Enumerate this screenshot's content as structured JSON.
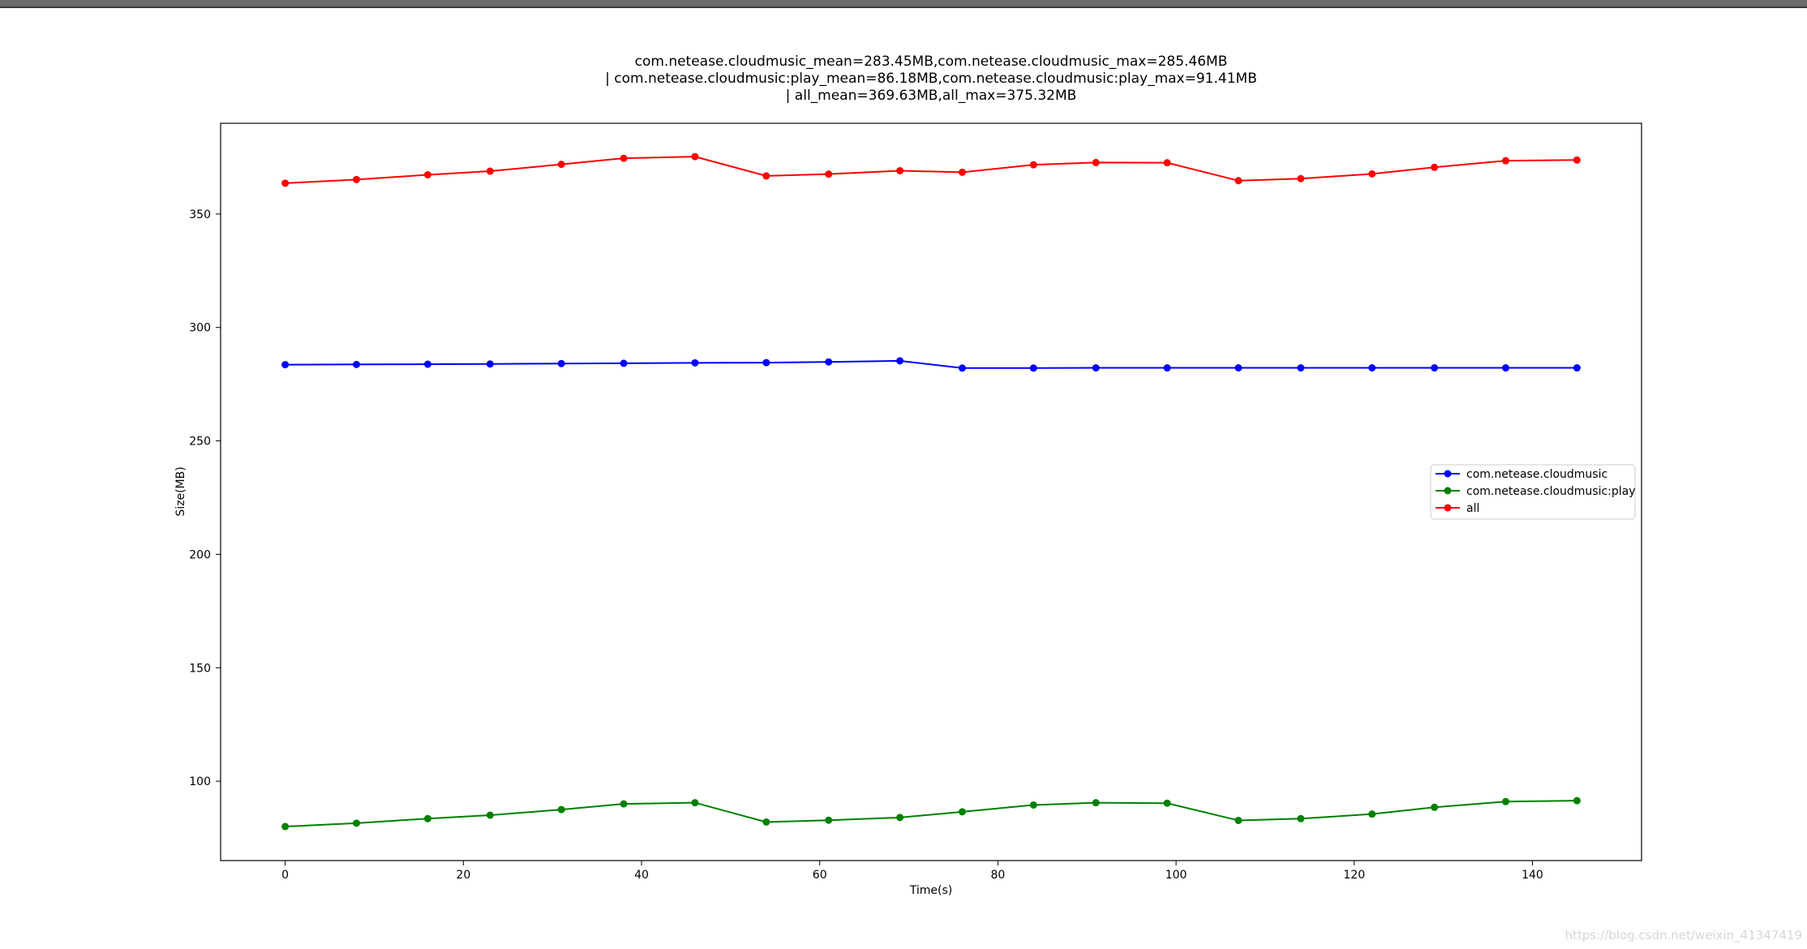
{
  "chart_data": {
    "type": "line",
    "title_lines": [
      "com.netease.cloudmusic_mean=283.45MB,com.netease.cloudmusic_max=285.46MB",
      "| com.netease.cloudmusic:play_mean=86.18MB,com.netease.cloudmusic:play_max=91.41MB",
      "| all_mean=369.63MB,all_max=375.32MB"
    ],
    "xlabel": "Time(s)",
    "ylabel": "Size(MB)",
    "xlim": [
      -7.25,
      152.25
    ],
    "ylim": [
      65,
      390
    ],
    "xticks": [
      0,
      20,
      40,
      60,
      80,
      100,
      120,
      140
    ],
    "yticks": [
      100,
      150,
      200,
      250,
      300,
      350
    ],
    "x": [
      0,
      8,
      16,
      23,
      31,
      38,
      46,
      54,
      61,
      69,
      76,
      84,
      91,
      99,
      107,
      114,
      122,
      129,
      137,
      145
    ],
    "series": [
      {
        "name": "com.netease.cloudmusic",
        "color": "#0000ff",
        "values": [
          283.6,
          283.7,
          283.8,
          283.9,
          284.1,
          284.2,
          284.4,
          284.5,
          284.8,
          285.3,
          282.1,
          282.1,
          282.2,
          282.2,
          282.2,
          282.2,
          282.2,
          282.2,
          282.2,
          282.2
        ]
      },
      {
        "name": "com.netease.cloudmusic:play",
        "color": "#008000",
        "values": [
          80.0,
          81.5,
          83.5,
          85.0,
          87.5,
          90.0,
          90.5,
          82.0,
          82.8,
          84.0,
          86.5,
          89.5,
          90.5,
          90.3,
          82.7,
          83.5,
          85.5,
          88.5,
          91.0,
          91.4
        ]
      },
      {
        "name": "all",
        "color": "#ff0000",
        "values": [
          363.6,
          365.2,
          367.3,
          368.9,
          371.9,
          374.6,
          375.3,
          366.8,
          367.6,
          369.1,
          368.4,
          371.7,
          372.7,
          372.6,
          364.7,
          365.6,
          367.7,
          370.6,
          373.5,
          373.8
        ]
      }
    ],
    "legend_position": "center-right",
    "grid": false
  },
  "watermark": "https://blog.csdn.net/weixin_41347419"
}
